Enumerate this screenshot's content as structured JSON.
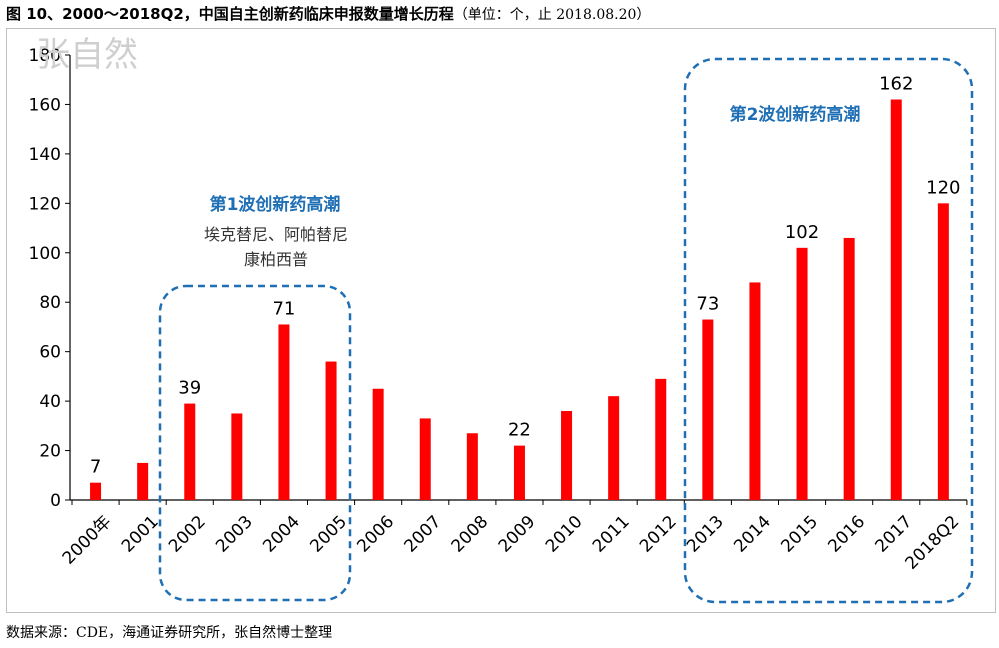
{
  "title": {
    "main": "图 10、2000～2018Q2，中国自主创新药临床申报数量增长历程",
    "unit": "（单位：个，止 2018.08.20）"
  },
  "watermark": "张自然",
  "source": "数据来源：CDE，海通证券研究所，张自然博士整理",
  "annotations": {
    "wave1_title": "第1波创新药高潮",
    "wave1_drugs_line1": "埃克替尼、阿帕替尼",
    "wave1_drugs_line2": "康柏西普",
    "wave2_title": "第2波创新药高潮"
  },
  "colors": {
    "bar": "#ff0000",
    "box": "#1f6fb5",
    "annotation": "#1f6fb5"
  },
  "chart_data": {
    "type": "bar",
    "categories": [
      "2000年",
      "2001",
      "2002",
      "2003",
      "2004",
      "2005",
      "2006",
      "2007",
      "2008",
      "2009",
      "2010",
      "2011",
      "2012",
      "2013",
      "2014",
      "2015",
      "2016",
      "2017",
      "2018Q2"
    ],
    "values": [
      7,
      15,
      39,
      35,
      71,
      56,
      45,
      33,
      27,
      22,
      36,
      42,
      49,
      73,
      88,
      102,
      106,
      162,
      120
    ],
    "data_labels": {
      "0": "7",
      "2": "39",
      "4": "71",
      "9": "22",
      "13": "73",
      "15": "102",
      "17": "162",
      "18": "120"
    },
    "ylim": [
      0,
      180
    ],
    "yticks": [
      0,
      20,
      40,
      60,
      80,
      100,
      120,
      140,
      160,
      180
    ],
    "grid": false,
    "xlabel": "",
    "ylabel": ""
  }
}
